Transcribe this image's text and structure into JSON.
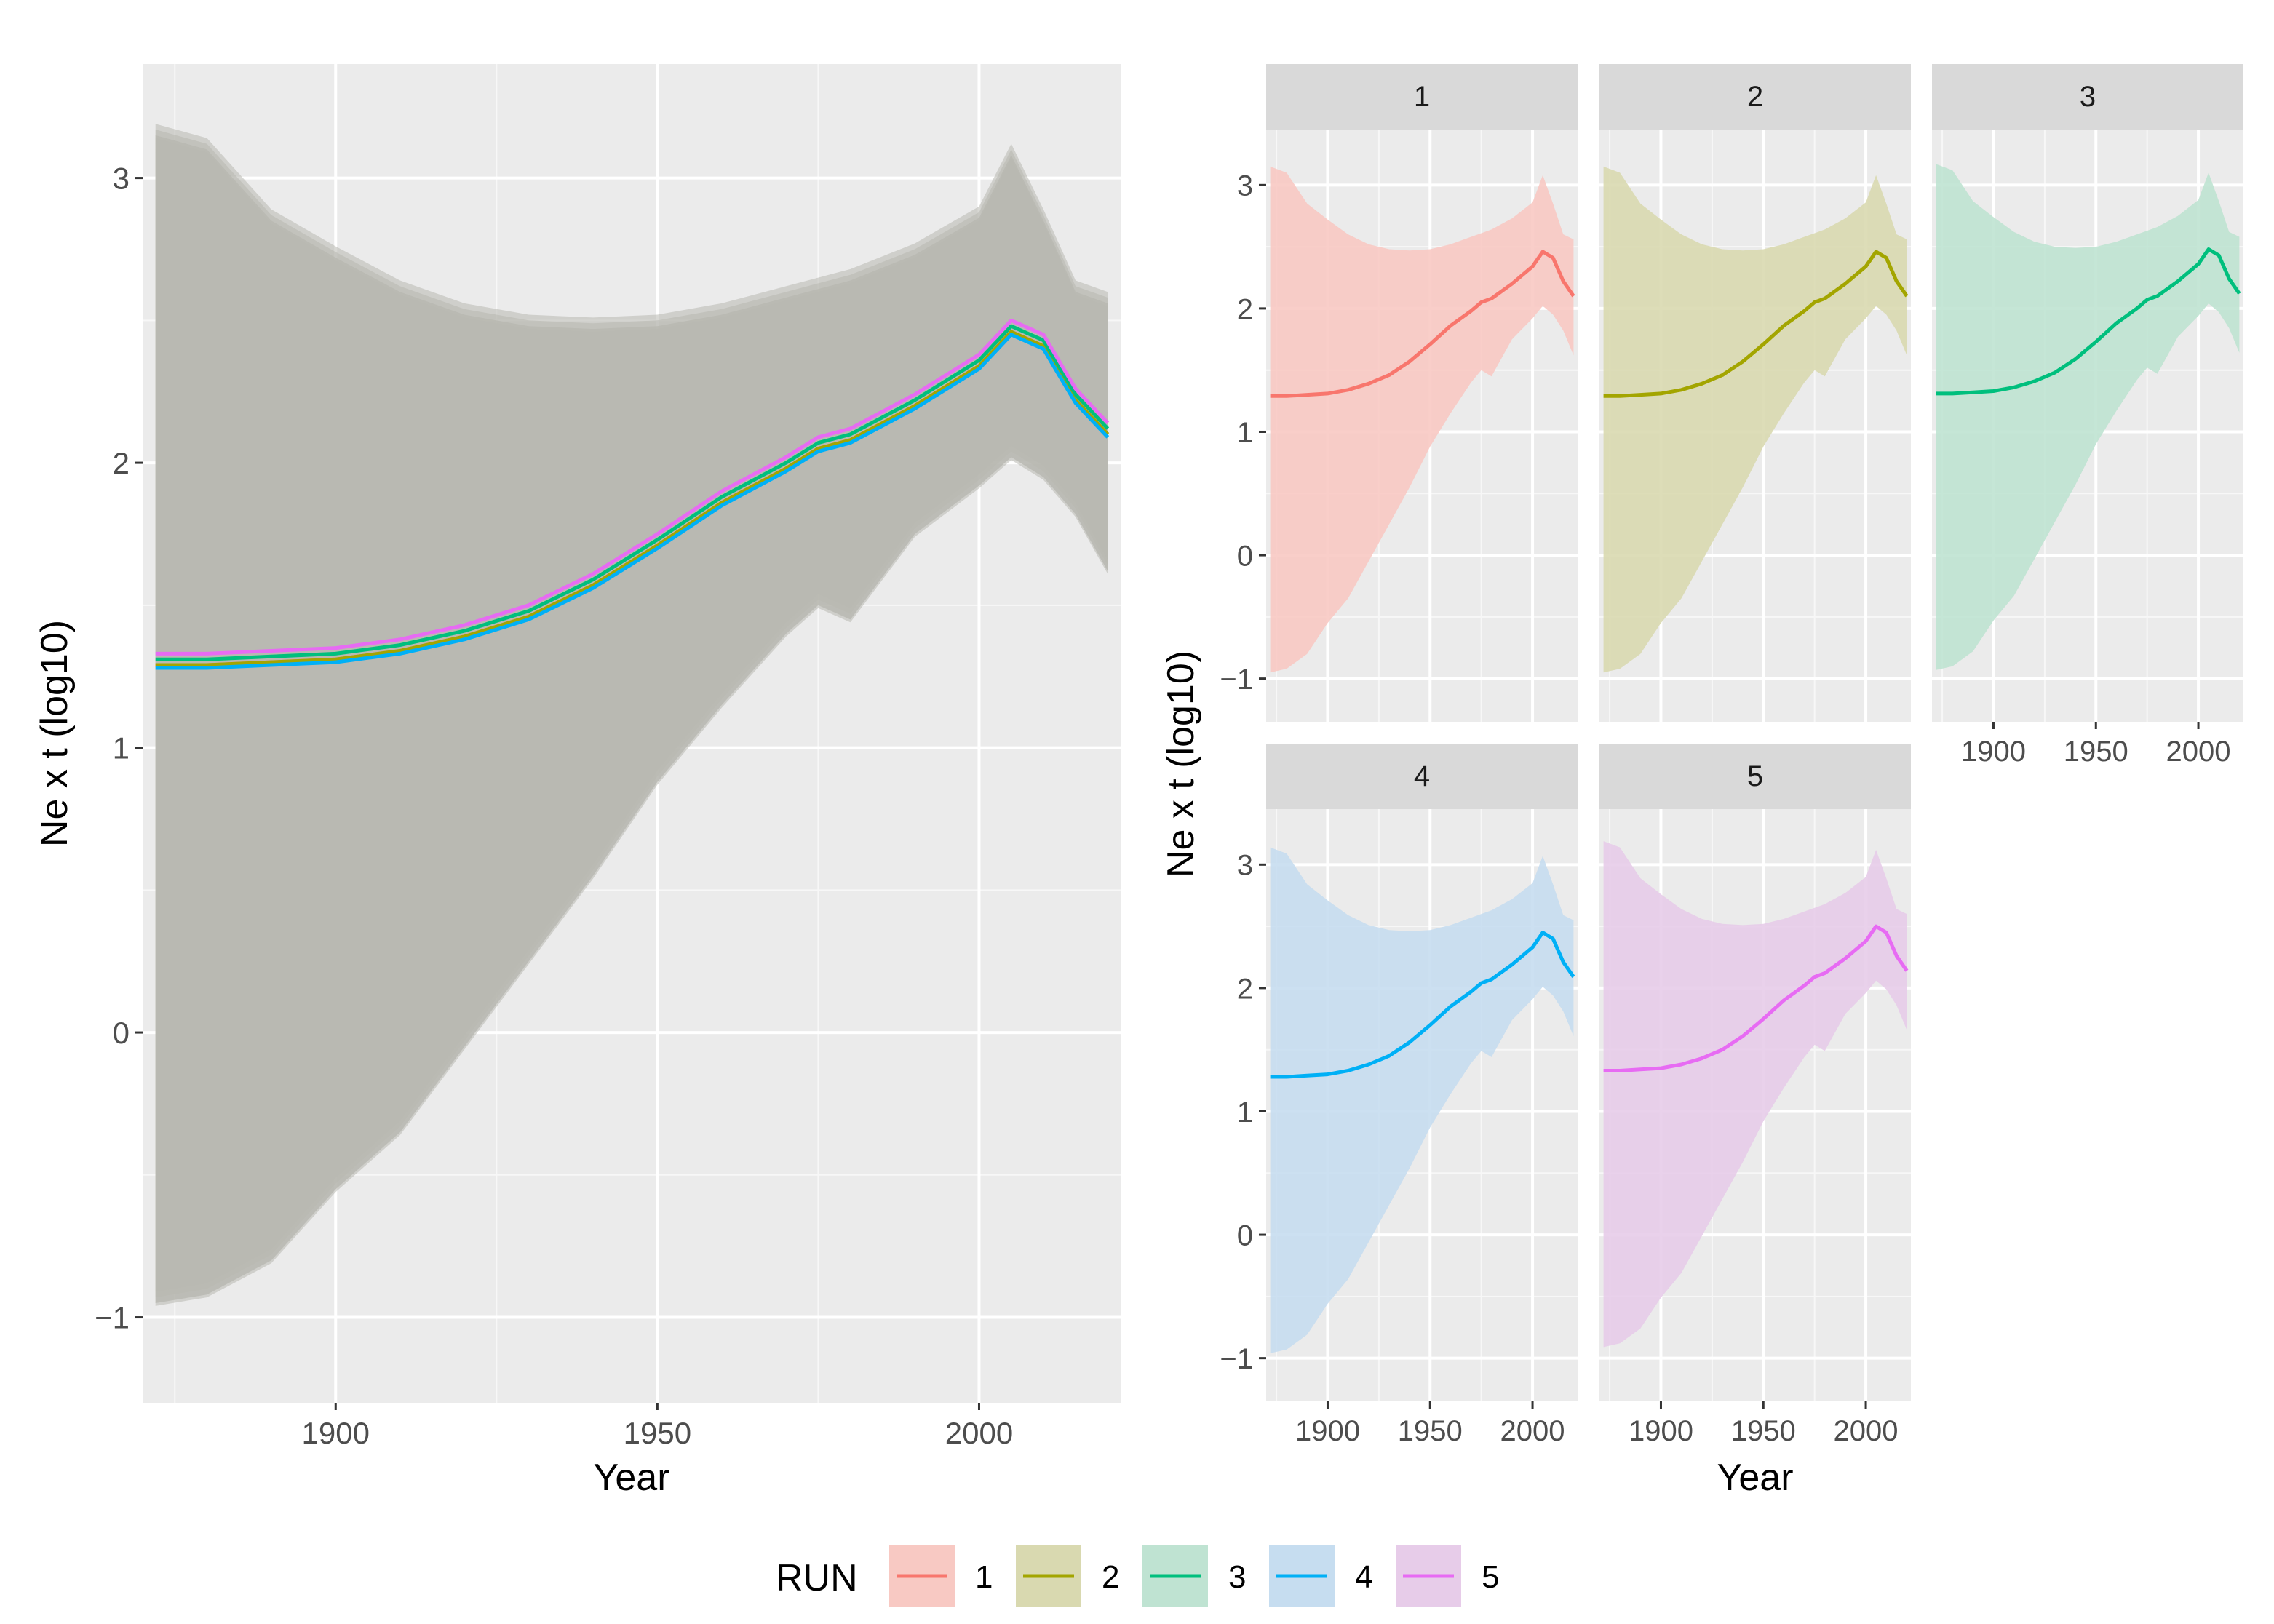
{
  "chart_data": [
    {
      "type": "line",
      "panel": "combined",
      "xlabel": "Year",
      "ylabel": "Ne x t (log10)",
      "xlim": [
        1870,
        2022
      ],
      "ylim": [
        -1.3,
        3.4
      ],
      "xticks": [
        1900,
        1950,
        2000
      ],
      "yticks": [
        -1,
        0,
        1,
        2,
        3
      ],
      "xtick_labels": [
        "1900",
        "1950",
        "2000"
      ],
      "ytick_labels": [
        "−1",
        "0",
        "1",
        "2",
        "3"
      ],
      "grid": true,
      "series_ref": "shared"
    },
    {
      "type": "line",
      "panel": "faceted",
      "xlabel": "Year",
      "ylabel": "Ne x t (log10)",
      "xlim": [
        1870,
        2022
      ],
      "ylim": [
        -1.35,
        3.45
      ],
      "xticks": [
        1900,
        1950,
        2000
      ],
      "yticks": [
        -1,
        0,
        1,
        2,
        3
      ],
      "xtick_labels": [
        "1900",
        "1950",
        "2000"
      ],
      "ytick_labels": [
        "−1",
        "0",
        "1",
        "2",
        "3"
      ],
      "grid": true,
      "facets": [
        "1",
        "2",
        "3",
        "4",
        "5"
      ]
    }
  ],
  "legend": {
    "title": "RUN",
    "placement": "bottom",
    "entries": [
      "1",
      "2",
      "3",
      "4",
      "5"
    ]
  },
  "series": [
    {
      "name": "1",
      "color": "#F8766D",
      "fill": "#F8C9C3"
    },
    {
      "name": "2",
      "color": "#A3A500",
      "fill": "#D9D9B0"
    },
    {
      "name": "3",
      "color": "#00BF7D",
      "fill": "#BFE3D2"
    },
    {
      "name": "4",
      "color": "#00B0F6",
      "fill": "#C6DDF0"
    },
    {
      "name": "5",
      "color": "#E76BF3",
      "fill": "#E7CCE9"
    }
  ],
  "x": [
    1872,
    1880,
    1890,
    1900,
    1910,
    1920,
    1930,
    1940,
    1950,
    1960,
    1970,
    1975,
    1980,
    1990,
    2000,
    2005,
    2010,
    2015,
    2020
  ],
  "mean": [
    1.29,
    1.29,
    1.3,
    1.31,
    1.34,
    1.39,
    1.46,
    1.57,
    1.71,
    1.86,
    1.98,
    2.05,
    2.08,
    2.2,
    2.34,
    2.46,
    2.41,
    2.22,
    2.1
  ],
  "upper": [
    3.15,
    3.1,
    2.85,
    2.72,
    2.6,
    2.52,
    2.48,
    2.47,
    2.48,
    2.52,
    2.58,
    2.61,
    2.64,
    2.73,
    2.86,
    3.08,
    2.85,
    2.6,
    2.56
  ],
  "lower": [
    -0.95,
    -0.92,
    -0.8,
    -0.55,
    -0.35,
    -0.05,
    0.25,
    0.55,
    0.88,
    1.15,
    1.4,
    1.5,
    1.45,
    1.75,
    1.92,
    2.02,
    1.95,
    1.82,
    1.62
  ],
  "offsets": [
    0.0,
    0.0,
    0.02,
    -0.01,
    0.04
  ]
}
